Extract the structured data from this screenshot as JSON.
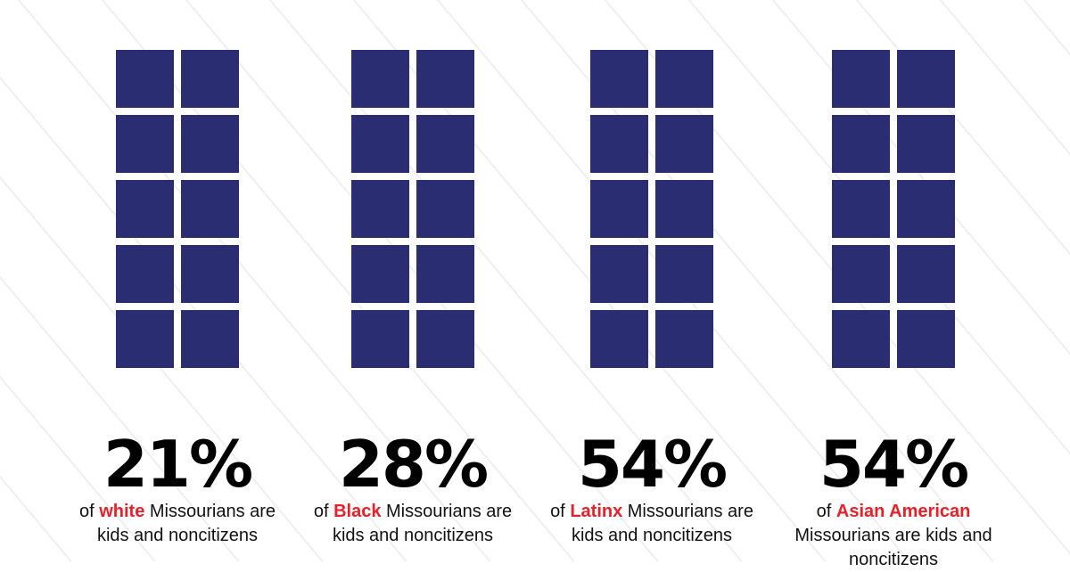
{
  "colors": {
    "square": "#2a2d72",
    "highlight": "#e8202a"
  },
  "chart_data": {
    "type": "pictogram",
    "squares_per_group": 10,
    "groups": [
      {
        "value": "21%",
        "pre": "of ",
        "group": "white",
        "post": " Missourians are kids and noncitizens"
      },
      {
        "value": "28%",
        "pre": "of ",
        "group": "Black",
        "post": " Missourians are kids and noncitizens"
      },
      {
        "value": "54%",
        "pre": "of ",
        "group": "Latinx",
        "post": " Missourians are kids and noncitizens"
      },
      {
        "value": "54%",
        "pre": "of ",
        "group": "Asian American",
        "post": " Missourians are kids and noncitizens"
      }
    ]
  }
}
